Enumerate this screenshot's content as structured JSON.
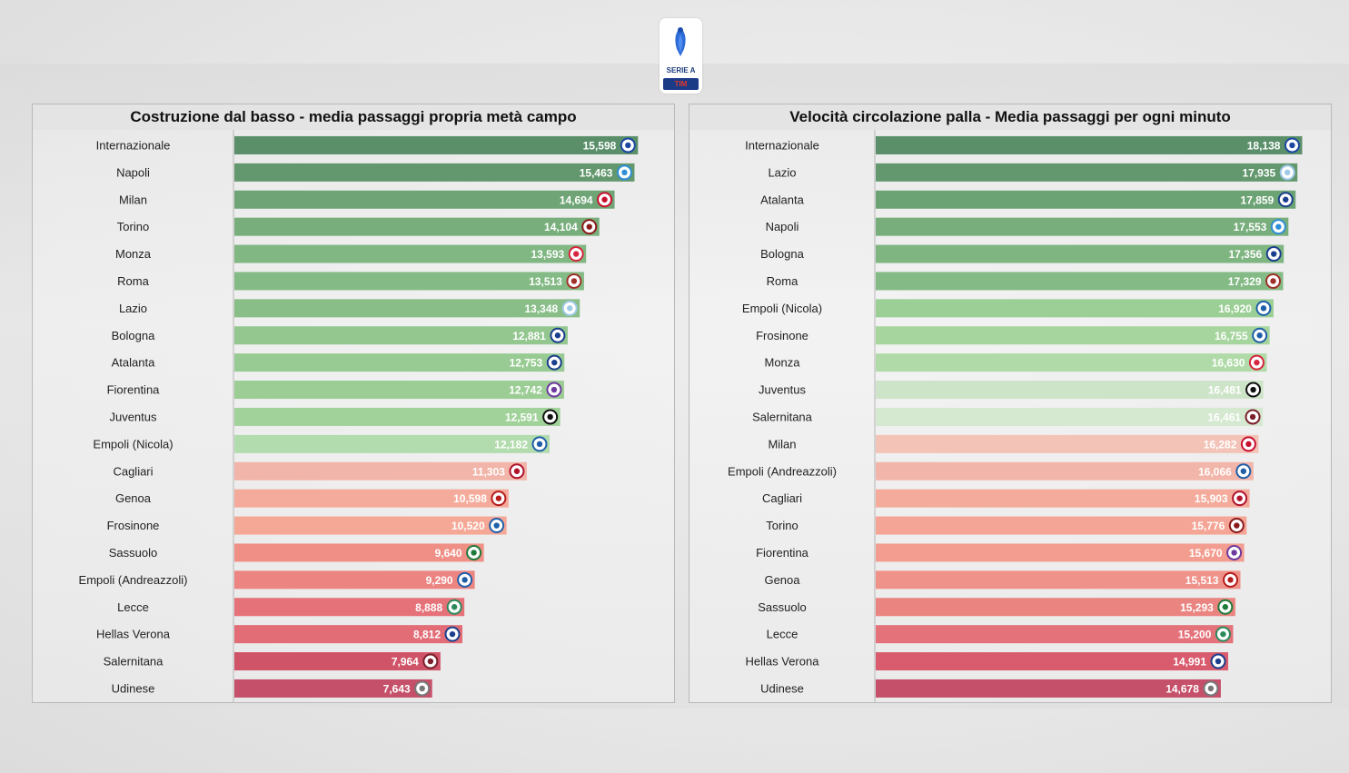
{
  "header": {
    "logo_line1": "SERIE A",
    "logo_line2": "TIM"
  },
  "chart_data": [
    {
      "type": "bar",
      "orientation": "horizontal",
      "title": "Costruzione dal basso - media passaggi propria metà campo",
      "xlim": [
        0,
        16.5
      ],
      "categories": [
        "Internazionale",
        "Napoli",
        "Milan",
        "Torino",
        "Monza",
        "Roma",
        "Lazio",
        "Bologna",
        "Atalanta",
        "Fiorentina",
        "Juventus",
        "Empoli (Nicola)",
        "Cagliari",
        "Genoa",
        "Frosinone",
        "Sassuolo",
        "Empoli (Andreazzoli)",
        "Lecce",
        "Hellas Verona",
        "Salernitana",
        "Udinese"
      ],
      "values": [
        15.598,
        15.463,
        14.694,
        14.104,
        13.593,
        13.513,
        13.348,
        12.881,
        12.753,
        12.742,
        12.591,
        12.182,
        11.303,
        10.598,
        10.52,
        9.64,
        9.29,
        8.888,
        8.812,
        7.964,
        7.643
      ],
      "value_labels": [
        "15,598",
        "15,463",
        "14,694",
        "14,104",
        "13,593",
        "13,513",
        "13,348",
        "12,881",
        "12,753",
        "12,742",
        "12,591",
        "12,182",
        "11,303",
        "10,598",
        "10,520",
        "9,640",
        "9,290",
        "8,888",
        "8,812",
        "7,964",
        "7,643"
      ],
      "colors": [
        "#5a8f6a",
        "#63986f",
        "#6fa576",
        "#78ae7c",
        "#81b783",
        "#84ba85",
        "#89be88",
        "#93c78f",
        "#98cb93",
        "#9bcd95",
        "#a1d29a",
        "#b3dcae",
        "#f2b5a9",
        "#f5ab9c",
        "#f6a897",
        "#ef8f86",
        "#ec8582",
        "#e57279",
        "#e26d76",
        "#cf5468",
        "#c5506a"
      ],
      "badges": [
        "#1a47a0",
        "#2e8fd6",
        "#c8102e",
        "#8b1a1a",
        "#d7263d",
        "#a0302a",
        "#9ec9e8",
        "#1a3f8c",
        "#1a3f8c",
        "#6f3a9e",
        "#111111",
        "#1f5fa8",
        "#b0122d",
        "#b51c1c",
        "#1f5fa8",
        "#1e7b3a",
        "#1f5fa8",
        "#2a8a5a",
        "#1a3f8c",
        "#7a1f2b",
        "#777777"
      ],
      "badge_icons": [
        "inter-crest-icon",
        "napoli-crest-icon",
        "milan-crest-icon",
        "torino-crest-icon",
        "monza-crest-icon",
        "roma-crest-icon",
        "lazio-crest-icon",
        "bologna-crest-icon",
        "atalanta-crest-icon",
        "fiorentina-crest-icon",
        "juventus-crest-icon",
        "empoli-crest-icon",
        "cagliari-crest-icon",
        "genoa-crest-icon",
        "frosinone-crest-icon",
        "sassuolo-crest-icon",
        "empoli-crest-icon",
        "lecce-crest-icon",
        "verona-crest-icon",
        "salernitana-crest-icon",
        "udinese-crest-icon"
      ]
    },
    {
      "type": "bar",
      "orientation": "horizontal",
      "title": "Velocità circolazione palla - Media passaggi per ogni minuto",
      "xlim": [
        0,
        18.7
      ],
      "categories": [
        "Internazionale",
        "Lazio",
        "Atalanta",
        "Napoli",
        "Bologna",
        "Roma",
        "Empoli (Nicola)",
        "Frosinone",
        "Monza",
        "Juventus",
        "Salernitana",
        "Milan",
        "Empoli (Andreazzoli)",
        "Cagliari",
        "Torino",
        "Fiorentina",
        "Genoa",
        "Sassuolo",
        "Lecce",
        "Hellas Verona",
        "Udinese"
      ],
      "values": [
        18.138,
        17.935,
        17.859,
        17.553,
        17.356,
        17.329,
        16.92,
        16.755,
        16.63,
        16.481,
        16.461,
        16.282,
        16.066,
        15.903,
        15.776,
        15.67,
        15.513,
        15.293,
        15.2,
        14.991,
        14.678
      ],
      "value_labels": [
        "18,138",
        "17,935",
        "17,859",
        "17,553",
        "17,356",
        "17,329",
        "16,920",
        "16,755",
        "16,630",
        "16,481",
        "16,461",
        "16,282",
        "16,066",
        "15,903",
        "15,776",
        "15,670",
        "15,513",
        "15,293",
        "15,200",
        "14,991",
        "14,678"
      ],
      "colors": [
        "#5a8f6a",
        "#63986f",
        "#6ca374",
        "#78ae7c",
        "#7fb581",
        "#84ba85",
        "#9ccf95",
        "#a6d59e",
        "#b0dba8",
        "#cde4c8",
        "#d5e8d0",
        "#f3c3b8",
        "#f2b5a9",
        "#f4ab9c",
        "#f5a596",
        "#f39d90",
        "#ef9289",
        "#ea8480",
        "#e4727a",
        "#d85c6e",
        "#c5506a"
      ],
      "badges": [
        "#1a47a0",
        "#9ec9e8",
        "#1a3f8c",
        "#2e8fd6",
        "#1a3f8c",
        "#a0302a",
        "#1f5fa8",
        "#1f5fa8",
        "#d7263d",
        "#111111",
        "#7a1f2b",
        "#c8102e",
        "#1f5fa8",
        "#b0122d",
        "#8b1a1a",
        "#6f3a9e",
        "#b51c1c",
        "#1e7b3a",
        "#2a8a5a",
        "#1a3f8c",
        "#777777"
      ],
      "badge_icons": [
        "inter-crest-icon",
        "lazio-crest-icon",
        "atalanta-crest-icon",
        "napoli-crest-icon",
        "bologna-crest-icon",
        "roma-crest-icon",
        "empoli-crest-icon",
        "frosinone-crest-icon",
        "monza-crest-icon",
        "juventus-crest-icon",
        "salernitana-crest-icon",
        "milan-crest-icon",
        "empoli-crest-icon",
        "cagliari-crest-icon",
        "torino-crest-icon",
        "fiorentina-crest-icon",
        "genoa-crest-icon",
        "sassuolo-crest-icon",
        "lecce-crest-icon",
        "verona-crest-icon",
        "udinese-crest-icon"
      ]
    }
  ]
}
